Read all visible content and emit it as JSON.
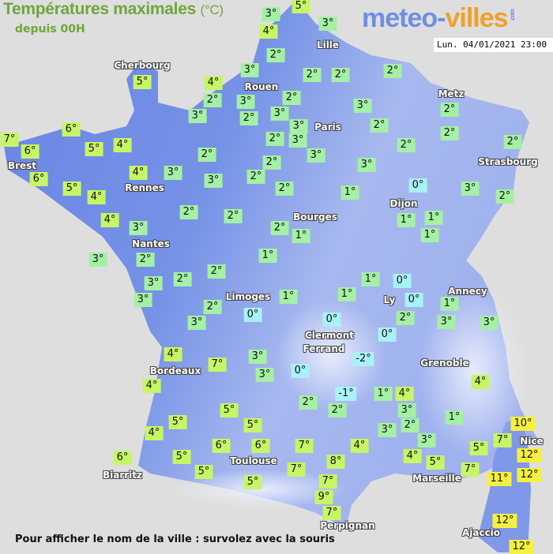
{
  "header": {
    "title": "Températures maximales",
    "unit": "(°C)",
    "subtitle": "depuis 00H",
    "logo_main": "meteo-",
    "logo_accent": "villes",
    "logo_suffix": ".com",
    "datetime": "Lun. 04/01/2021 23:00"
  },
  "footer": {
    "hint": "Pour afficher le nom de la ville : survolez avec la souris"
  },
  "legend_colors": {
    "freezing": "#a8f2f6",
    "cold": "#a4f0a4",
    "mild": "#c6f566",
    "warm": "#f5f040"
  },
  "cities": [
    "Lille",
    "Cherbourg",
    "Rouen",
    "Metz",
    "Paris",
    "Brest",
    "Strasbourg",
    "Rennes",
    "Dijon",
    "Bourges",
    "Nantes",
    "Annecy",
    "Limoges",
    "Ly",
    "Clermont",
    "Ferrand",
    "Grenoble",
    "Bordeaux",
    "Toulouse",
    "Biarritz",
    "Marseille",
    "Nice",
    "Perpignan",
    "Ajaccio"
  ],
  "temperatures": [
    "5°",
    "3°",
    "3°",
    "4°",
    "2°",
    "3°",
    "2°",
    "2°",
    "2°",
    "5°",
    "4°",
    "2°",
    "3°",
    "2°",
    "3°",
    "2°",
    "3°",
    "3°",
    "2°",
    "3°",
    "2°",
    "6°",
    "2°",
    "7°",
    "6°",
    "5°",
    "4°",
    "2°",
    "3°",
    "3°",
    "2°",
    "2°",
    "2°",
    "2°",
    "6°",
    "4°",
    "3°",
    "3°",
    "2°",
    "3°",
    "2°",
    "0°",
    "3°",
    "5°",
    "4°",
    "2°",
    "1°",
    "2°",
    "2°",
    "4°",
    "3°",
    "2°",
    "1°",
    "1°",
    "1°",
    "1°",
    "3°",
    "2°",
    "1°",
    "3°",
    "2°",
    "2°",
    "1°",
    "0°",
    "3°",
    "1°",
    "1°",
    "0°",
    "2°",
    "1°",
    "3°",
    "0°",
    "0°",
    "2°",
    "3°",
    "3°",
    "0°",
    "4°",
    "3°",
    "-2°",
    "7°",
    "3°",
    "0°",
    "4°",
    "4°",
    "-1°",
    "1°",
    "4°",
    "2°",
    "2°",
    "3°",
    "5°",
    "5°",
    "5°",
    "2°",
    "1°",
    "3°",
    "10°",
    "4°",
    "3°",
    "7°",
    "5°",
    "6°",
    "6°",
    "7°",
    "4°",
    "4°",
    "5°",
    "12°",
    "6°",
    "5°",
    "5°",
    "5°",
    "7°",
    "8°",
    "7°",
    "9°",
    "7°",
    "7°",
    "11°",
    "12°",
    "12°",
    "12°"
  ]
}
